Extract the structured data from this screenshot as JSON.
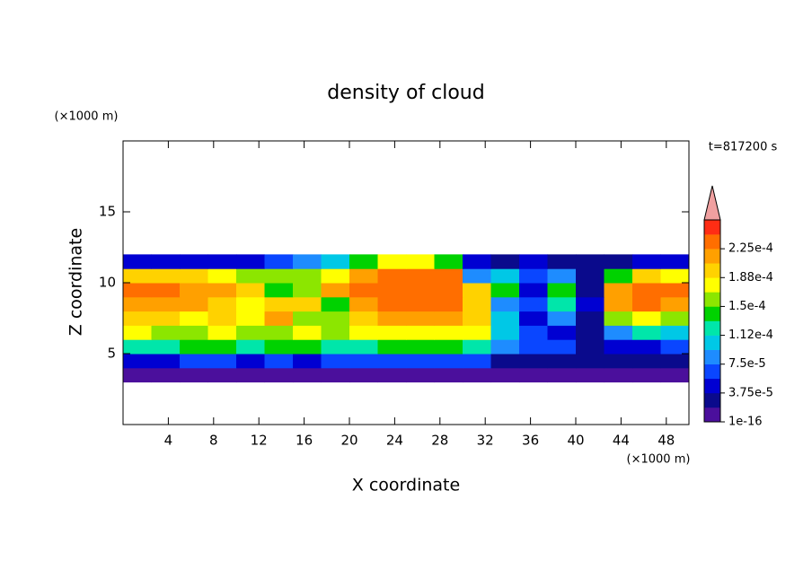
{
  "chart_data": {
    "type": "contour",
    "title": "density of cloud",
    "time_label": "t=817200 s",
    "x_label": "X coordinate",
    "y_label": "Z coordinate",
    "x_unit": "(×1000 m)",
    "y_unit": "(×1000 m)",
    "xlim": [
      0,
      50
    ],
    "ylim": [
      0,
      20
    ],
    "xticks": [
      4,
      8,
      12,
      16,
      20,
      24,
      28,
      32,
      36,
      40,
      44,
      48
    ],
    "yticks": [
      5,
      10,
      15
    ],
    "x": [
      1.25,
      3.75,
      6.25,
      8.75,
      11.25,
      13.75,
      16.25,
      18.75,
      21.25,
      23.75,
      26.25,
      28.75,
      31.25,
      33.75,
      36.25,
      38.75,
      41.25,
      43.75,
      46.25,
      48.75
    ],
    "y": [
      3.5,
      4.5,
      5.5,
      6.5,
      7.5,
      8.5,
      9.5,
      10.5,
      11.5
    ],
    "z": [
      [
        1e-05,
        1e-05,
        1e-05,
        1e-05,
        5e-06,
        1e-05,
        1e-05,
        1e-05,
        1e-05,
        1e-05,
        1e-05,
        1e-05,
        1e-05,
        1e-05,
        1e-05,
        1e-05,
        1e-05,
        1e-05,
        1e-05,
        1e-05
      ],
      [
        5e-05,
        5e-05,
        6e-05,
        6e-05,
        4e-05,
        6e-05,
        5e-05,
        6e-05,
        6e-05,
        6e-05,
        6e-05,
        6e-05,
        6e-05,
        3e-05,
        2e-05,
        2e-05,
        2e-05,
        2e-05,
        2e-05,
        2e-05
      ],
      [
        0.00013,
        0.00013,
        0.00014,
        0.00014,
        0.00012,
        0.00014,
        0.00014,
        0.00012,
        0.00013,
        0.00014,
        0.00014,
        0.00014,
        0.00013,
        8e-05,
        6e-05,
        6e-05,
        3e-05,
        5e-05,
        5e-05,
        6e-05
      ],
      [
        0.00017,
        0.00016,
        0.00016,
        0.00017,
        0.00016,
        0.00016,
        0.00017,
        0.00015,
        0.00017,
        0.00018,
        0.00018,
        0.00018,
        0.00017,
        0.0001,
        6e-05,
        4e-05,
        3e-05,
        8e-05,
        0.00012,
        0.0001
      ],
      [
        0.0002,
        0.00019,
        0.00018,
        0.00019,
        0.00017,
        0.00022,
        0.00016,
        0.00016,
        0.00019,
        0.00021,
        0.00021,
        0.00021,
        0.00019,
        0.0001,
        4e-05,
        8e-05,
        3e-05,
        0.00016,
        0.00018,
        0.00016
      ],
      [
        0.00022,
        0.00022,
        0.00021,
        0.0002,
        0.00018,
        0.00019,
        0.0002,
        0.00014,
        0.00022,
        0.00023,
        0.00023,
        0.00023,
        0.0002,
        8e-05,
        6e-05,
        0.00012,
        4e-05,
        0.00022,
        0.00024,
        0.00022
      ],
      [
        0.00023,
        0.00023,
        0.00022,
        0.00022,
        0.0002,
        0.00014,
        0.00016,
        0.00022,
        0.00023,
        0.00024,
        0.00024,
        0.00023,
        0.0002,
        0.00014,
        5e-05,
        0.00014,
        2e-05,
        0.00022,
        0.00024,
        0.00023
      ],
      [
        0.0002,
        0.0002,
        0.00019,
        0.00018,
        0.00016,
        0.00015,
        0.00016,
        0.00018,
        0.00022,
        0.00024,
        0.00024,
        0.00023,
        8e-05,
        0.0001,
        6e-05,
        8e-05,
        3e-05,
        0.00014,
        0.0002,
        0.00018
      ],
      [
        4e-05,
        5e-05,
        5e-05,
        5e-05,
        5e-05,
        6e-05,
        8e-05,
        0.0001,
        0.00014,
        0.00017,
        0.00018,
        0.00014,
        4e-05,
        3e-05,
        4e-05,
        3e-05,
        2e-05,
        3e-05,
        4e-05,
        4e-05
      ]
    ],
    "colorbar": {
      "levels": [
        1e-16,
        1.875e-05,
        3.75e-05,
        5.625e-05,
        7.5e-05,
        9.375e-05,
        0.0001125,
        0.00013125,
        0.00015,
        0.00016875,
        0.0001875,
        0.00020625,
        0.000225,
        0.00024375,
        0.0002625
      ],
      "colors": [
        "#4b0f9c",
        "#0a0a8c",
        "#0000d2",
        "#0a46ff",
        "#1e8cff",
        "#00c8e6",
        "#00e6aa",
        "#00d200",
        "#8ce600",
        "#ffff00",
        "#ffd200",
        "#ffa000",
        "#ff6e00",
        "#ff2d14"
      ],
      "extend_color": "#f0a0a0",
      "ticks": [
        {
          "value": 1e-16,
          "label": "1e-16"
        },
        {
          "value": 3.75e-05,
          "label": "3.75e-5"
        },
        {
          "value": 7.5e-05,
          "label": "7.5e-5"
        },
        {
          "value": 0.0001125,
          "label": "1.12e-4"
        },
        {
          "value": 0.00015,
          "label": "1.5e-4"
        },
        {
          "value": 0.0001875,
          "label": "1.88e-4"
        },
        {
          "value": 0.000225,
          "label": "2.25e-4"
        }
      ]
    }
  }
}
